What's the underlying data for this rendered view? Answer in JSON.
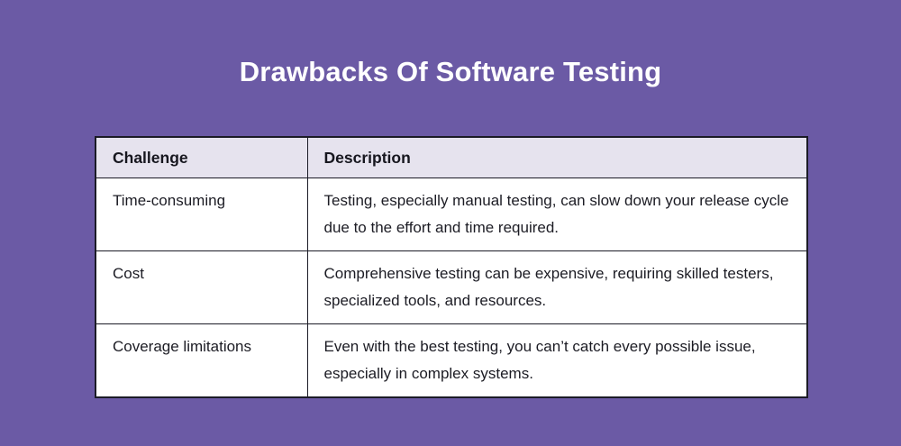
{
  "page": {
    "background_color": "#6B5AA5",
    "title": "Drawbacks Of Software Testing"
  },
  "table": {
    "header_bg": "#E6E3EE",
    "cell_bg": "#FFFFFF",
    "border_color": "#1B1B26",
    "columns": [
      "Challenge",
      "Description"
    ],
    "rows": [
      {
        "challenge": "Time-consuming",
        "description": "Testing, especially manual testing, can slow down your release cycle due to the effort and time required."
      },
      {
        "challenge": "Cost",
        "description": "Comprehensive testing can be expensive, requiring skilled testers, specialized tools, and resources."
      },
      {
        "challenge": "Coverage limitations",
        "description": "Even with the best testing, you can’t catch every possible issue, especially in complex systems."
      }
    ]
  }
}
